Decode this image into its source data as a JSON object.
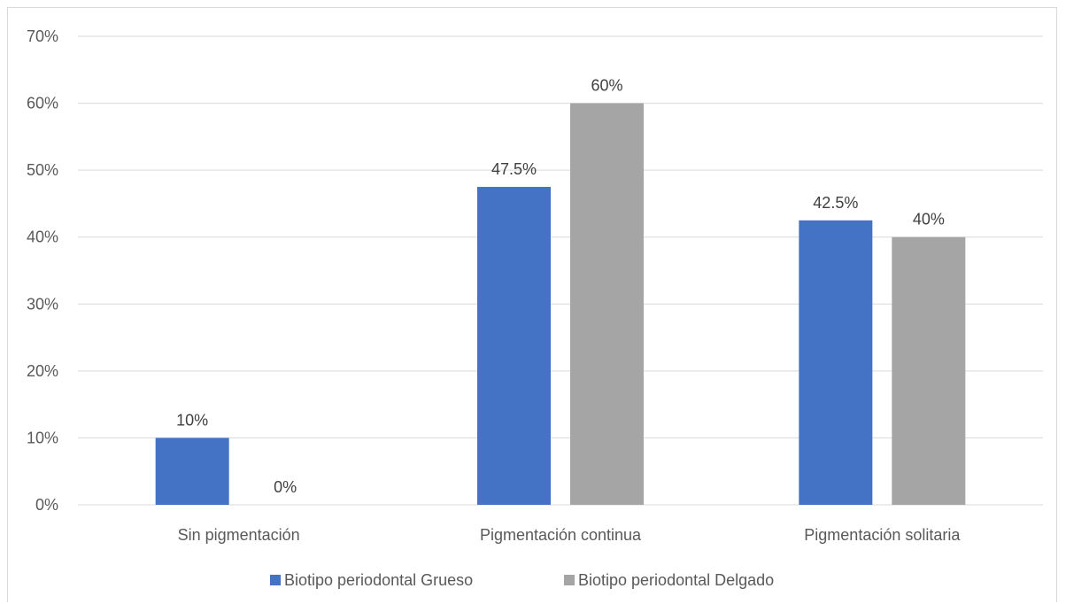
{
  "chart_data": {
    "type": "bar",
    "categories": [
      "Sin pigmentación",
      "Pigmentación continua",
      "Pigmentación solitaria"
    ],
    "series": [
      {
        "name": "Biotipo periodontal Grueso",
        "values": [
          10,
          47.5,
          42.5
        ],
        "labels": [
          "10%",
          "47.5%",
          "42.5%"
        ],
        "color": "#4472c4"
      },
      {
        "name": "Biotipo periodontal Delgado",
        "values": [
          0,
          60,
          40
        ],
        "labels": [
          "0%",
          "60%",
          "40%"
        ],
        "color": "#a5a5a5"
      }
    ],
    "y_ticks": [
      "0%",
      "10%",
      "20%",
      "30%",
      "40%",
      "50%",
      "60%",
      "70%"
    ],
    "ylim": [
      0,
      70
    ],
    "y_unit": "%",
    "grid": true,
    "legend_position": "bottom",
    "gridline_color": "#d9d9d9"
  }
}
